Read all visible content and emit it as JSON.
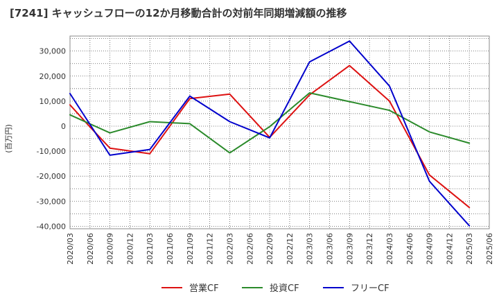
{
  "chart_data": {
    "type": "line",
    "title": "[7241]  キャッシュフローの12か月移動合計の対前年同期増減額の推移",
    "ylabel": "(百万円)",
    "xlabel": "",
    "ylim": [
      -41000,
      36000
    ],
    "yticks": [
      30000,
      20000,
      10000,
      0,
      -10000,
      -20000,
      -30000,
      -40000
    ],
    "ytick_labels": [
      "30,000",
      "20,000",
      "10,000",
      "0",
      "-10,000",
      "-20,000",
      "-30,000",
      "-40,000"
    ],
    "categories": [
      "2020/03",
      "2020/06",
      "2020/09",
      "2020/12",
      "2021/03",
      "2021/06",
      "2021/09",
      "2021/12",
      "2022/03",
      "2022/06",
      "2022/09",
      "2022/12",
      "2023/03",
      "2023/06",
      "2023/09",
      "2023/12",
      "2024/03",
      "2024/06",
      "2024/09",
      "2024/12",
      "2025/03",
      "2025/06"
    ],
    "grid": true,
    "legend_position": "bottom",
    "series": [
      {
        "name": "営業CF",
        "color": "#dd1111",
        "values": [
          8500,
          -300,
          -8800,
          null,
          -11000,
          null,
          11000,
          null,
          12800,
          null,
          -4500,
          null,
          12500,
          null,
          24200,
          null,
          10000,
          null,
          -19500,
          null,
          -32500,
          null
        ]
      },
      {
        "name": "投資CF",
        "color": "#2a8a2a",
        "values": [
          4500,
          null,
          -2700,
          null,
          1800,
          null,
          1000,
          null,
          -10700,
          null,
          -200,
          null,
          13300,
          null,
          9800,
          null,
          6300,
          null,
          -2300,
          null,
          -6800,
          null
        ]
      },
      {
        "name": "フリーCF",
        "color": "#0000cc",
        "values": [
          13000,
          null,
          -11600,
          null,
          -9300,
          null,
          12000,
          null,
          1800,
          null,
          -4700,
          null,
          25700,
          null,
          34000,
          null,
          16000,
          null,
          -22000,
          null,
          -39800,
          null
        ]
      }
    ]
  }
}
